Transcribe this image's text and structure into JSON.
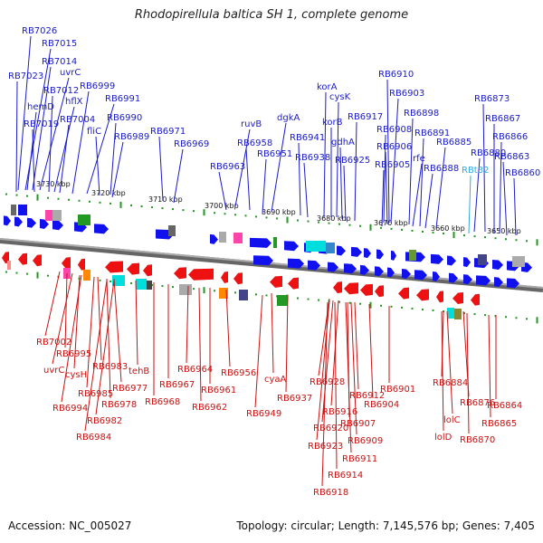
{
  "title": "Rhodopirellula baltica SH 1, complete genome",
  "footer": {
    "accession": "Accession: NC_005027",
    "summary": "Topology: circular; Length: 7,145,576 bp; Genes: 7,405"
  },
  "colors": {
    "forward_label": "#1a1acc",
    "reverse_label": "#cc1111",
    "highlight_label": "#33aadd",
    "forward_arrow": "#1111ee",
    "reverse_arrow": "#ee1111",
    "backbone": "#888888",
    "tick": "#229922"
  },
  "scale_labels": [
    "3730 kbp",
    "3720 kbp",
    "3710 kbp",
    "3700 kbp",
    "3690 kbp",
    "3680 kbp",
    "3670 kbp",
    "3660 kbp",
    "3650 kbp"
  ],
  "forward_labels": [
    "RB7026",
    "RB7015",
    "RB7014",
    "uvrC",
    "RB7023",
    "RB7012",
    "hflX",
    "hemD",
    "RB7004",
    "RB7019",
    "RB6999",
    "RB6991",
    "RB6990",
    "fliC",
    "RB6989",
    "RB6971",
    "RB6969",
    "ruvB",
    "RB6963",
    "RB6958",
    "dgkA",
    "RB6951",
    "RB6941",
    "korA",
    "cysK",
    "korB",
    "RB6938",
    "gdhA",
    "RB6917",
    "RB6925",
    "RB6910",
    "RB6903",
    "RB6898",
    "RB6908",
    "RB6906",
    "RB6891",
    "rfe",
    "RB6885",
    "RB6905",
    "RB6888",
    "RB6880",
    "RB6873",
    "RB6867",
    "RB6866",
    "RB6863",
    "RB6860",
    "RBt32"
  ],
  "reverse_labels": [
    "RB7002",
    "RB6995",
    "uvrC",
    "cysH",
    "RB6983",
    "RB6994",
    "RB6985",
    "RB6978",
    "RB6977",
    "tehB",
    "RB6982",
    "RB6984",
    "RB6968",
    "RB6967",
    "RB6964",
    "RB6961",
    "RB6962",
    "RB6956",
    "cyaA",
    "RB6937",
    "RB6949",
    "RB6928",
    "RB6916",
    "RB6920",
    "RB6923",
    "RB6912",
    "RB6904",
    "RB6907",
    "RB6909",
    "RB6911",
    "RB6914",
    "RB6918",
    "RB6901",
    "RB6884",
    "RB6876",
    "lolC",
    "lolD",
    "RB6870",
    "RB6864",
    "RB6865"
  ]
}
